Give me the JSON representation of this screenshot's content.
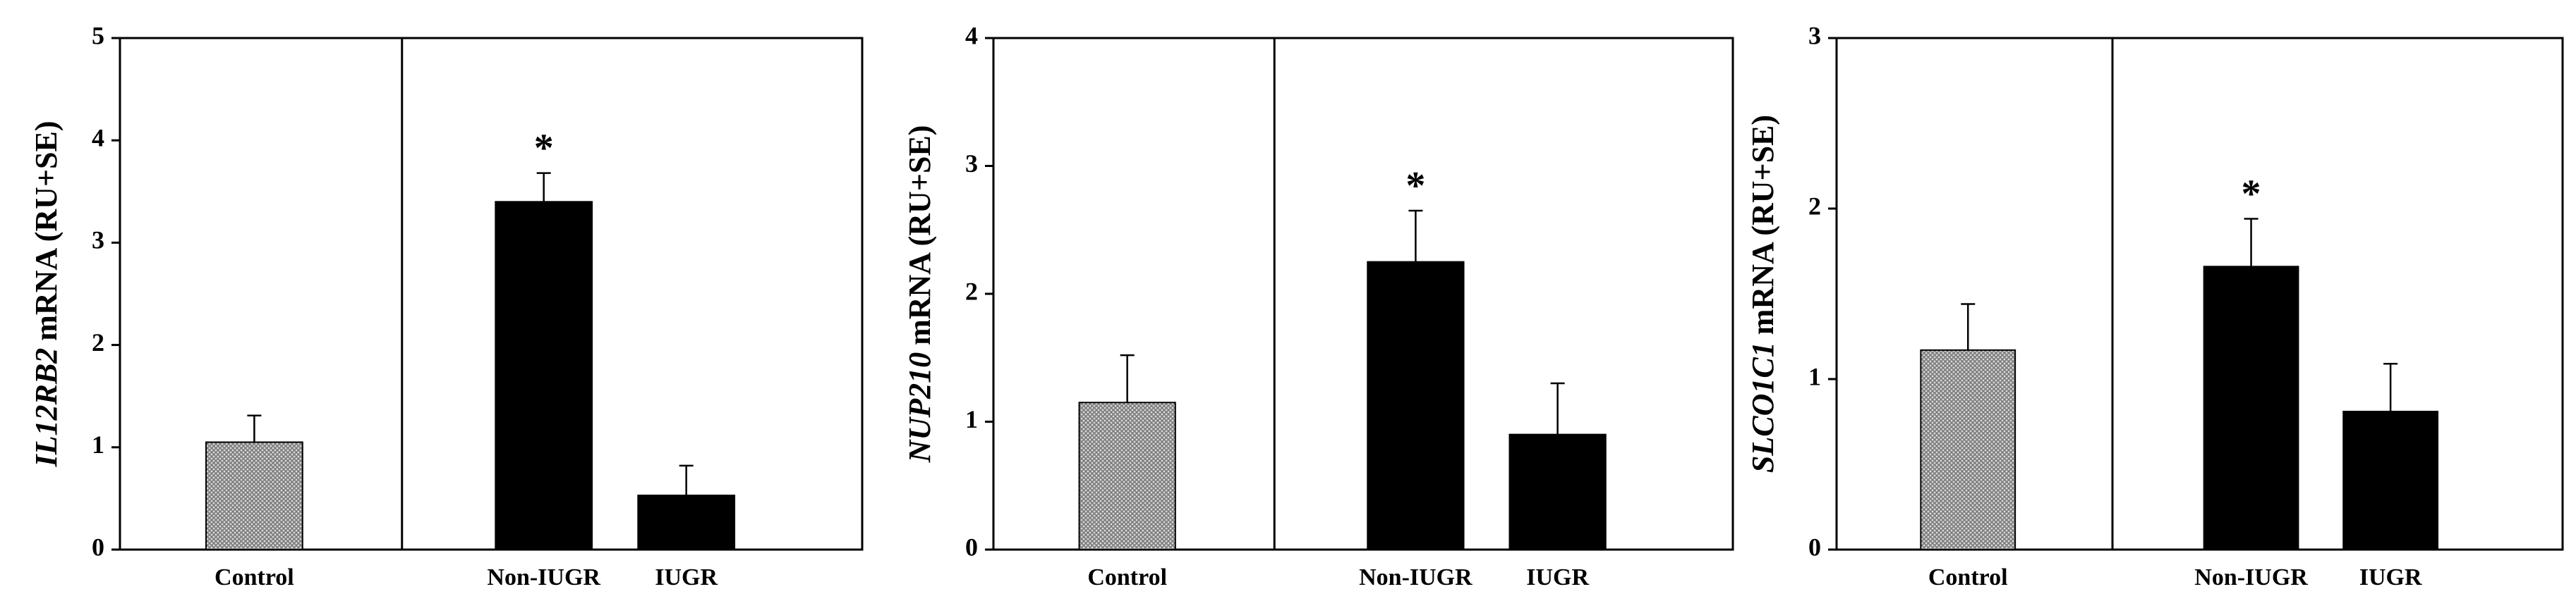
{
  "chart_data": [
    {
      "type": "bar",
      "ylabel_gene": "IL12RB2",
      "ylabel": "mRNA (RU+SE)",
      "categories": [
        "Control",
        "Non-IUGR",
        "IUGR"
      ],
      "values": [
        1.05,
        3.4,
        0.53
      ],
      "errors": [
        0.26,
        0.28,
        0.29
      ],
      "markers": [
        null,
        "*",
        null
      ],
      "colors": [
        "#7a7a7a",
        "#000000",
        "#000000"
      ],
      "ylim": [
        0,
        5
      ],
      "yticks": [
        0,
        1,
        2,
        3,
        4,
        5
      ]
    },
    {
      "type": "bar",
      "ylabel_gene": "NUP210",
      "ylabel": "mRNA (RU+SE)",
      "categories": [
        "Control",
        "Non-IUGR",
        "IUGR"
      ],
      "values": [
        1.15,
        2.25,
        0.9
      ],
      "errors": [
        0.37,
        0.4,
        0.4
      ],
      "markers": [
        null,
        "*",
        null
      ],
      "colors": [
        "#7a7a7a",
        "#000000",
        "#000000"
      ],
      "ylim": [
        0,
        4
      ],
      "yticks": [
        0,
        1,
        2,
        3,
        4
      ]
    },
    {
      "type": "bar",
      "ylabel_gene": "SLCO1C1",
      "ylabel": "mRNA (RU+SE)",
      "categories": [
        "Control",
        "Non-IUGR",
        "IUGR"
      ],
      "values": [
        1.17,
        1.66,
        0.81
      ],
      "errors": [
        0.27,
        0.28,
        0.28
      ],
      "markers": [
        null,
        "*",
        null
      ],
      "colors": [
        "#7a7a7a",
        "#000000",
        "#000000"
      ],
      "ylim": [
        0,
        3
      ],
      "yticks": [
        0,
        1,
        2,
        3
      ]
    }
  ]
}
